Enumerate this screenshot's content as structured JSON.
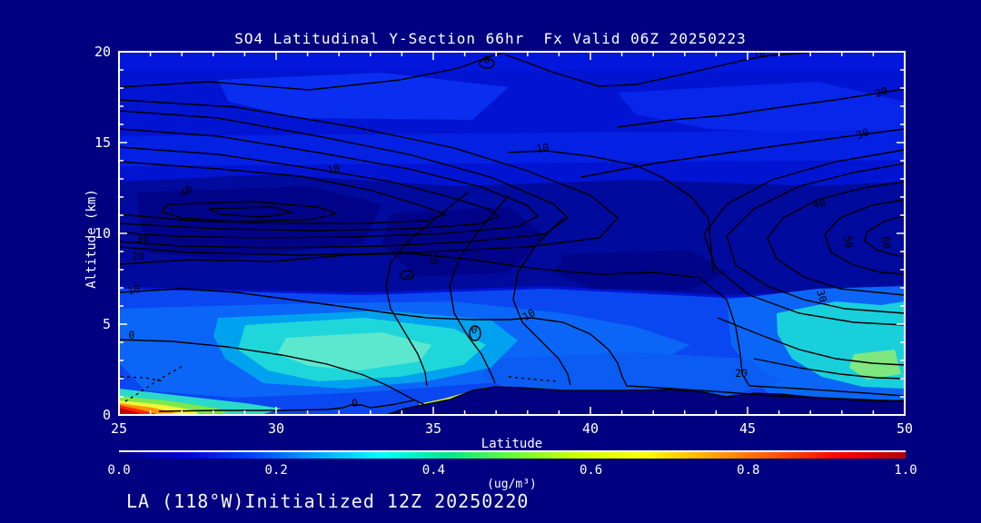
{
  "title": "SO4 Latitudinal Y-Section 66hr  Fx Valid 06Z 20250223",
  "footer": {
    "text": "LA (118°W)Initialized 12Z 20250220"
  },
  "chart_data": {
    "type": "heatmap",
    "subtype": "filled-contour-cross-section",
    "title": "SO4 Latitudinal Y-Section 66hr  Fx Valid 06Z 20250223",
    "xlabel": "Latitude",
    "ylabel": "Altitude (km)",
    "xlim": [
      25,
      50
    ],
    "ylim": [
      0,
      20
    ],
    "x_ticks": [
      25,
      30,
      35,
      40,
      45,
      50
    ],
    "y_ticks": [
      0,
      5,
      10,
      15,
      20
    ],
    "x_minor_step": 1,
    "y_minor_step": 1,
    "grid": false,
    "contour_levels": [
      0,
      10,
      20,
      30,
      40,
      50,
      60
    ],
    "contour_labels": [
      {
        "v": "10",
        "lat": 45.4,
        "alt_km": 19.7,
        "rot": -15
      },
      {
        "v": "0",
        "lat": 36.7,
        "alt_km": 19.35,
        "rot": 0
      },
      {
        "v": "20",
        "lat": 49.3,
        "alt_km": 17.6,
        "rot": -20
      },
      {
        "v": "30",
        "lat": 48.7,
        "alt_km": 15.3,
        "rot": -20
      },
      {
        "v": "10",
        "lat": 31.85,
        "alt_km": 13.35,
        "rot": -12
      },
      {
        "v": "10",
        "lat": 38.5,
        "alt_km": 14.5,
        "rot": -10
      },
      {
        "v": "40",
        "lat": 27.2,
        "alt_km": 12.15,
        "rot": -35
      },
      {
        "v": "30",
        "lat": 25.75,
        "alt_km": 9.5,
        "rot": 0
      },
      {
        "v": "20",
        "lat": 25.6,
        "alt_km": 8.55,
        "rot": 0
      },
      {
        "v": "10",
        "lat": 25.5,
        "alt_km": 6.7,
        "rot": -15
      },
      {
        "v": "0",
        "lat": 25.4,
        "alt_km": 4.2,
        "rot": 0
      },
      {
        "v": "40",
        "lat": 47.3,
        "alt_km": 11.45,
        "rot": -10
      },
      {
        "v": "50",
        "lat": 48.1,
        "alt_km": 9.5,
        "rot": 80
      },
      {
        "v": "60",
        "lat": 49.3,
        "alt_km": 9.45,
        "rot": 80
      },
      {
        "v": "30",
        "lat": 47.25,
        "alt_km": 6.5,
        "rot": 75
      },
      {
        "v": "20",
        "lat": 44.8,
        "alt_km": 2.1,
        "rot": 0
      },
      {
        "v": "0",
        "lat": 34.1,
        "alt_km": 7.5,
        "rot": 70
      },
      {
        "v": "0",
        "lat": 36.3,
        "alt_km": 4.5,
        "rot": 0
      },
      {
        "v": "10",
        "lat": 38.1,
        "alt_km": 5.35,
        "rot": -30
      },
      {
        "v": "0",
        "lat": 32.5,
        "alt_km": 0.45,
        "rot": 0
      },
      {
        "v": "10",
        "lat": 34.9,
        "alt_km": 8.6,
        "rot": 85
      }
    ],
    "colorbar": {
      "label": "(ug/m³)",
      "range": [
        0.0,
        1.0
      ],
      "ticks": [
        "0.0",
        "0.2",
        "0.4",
        "0.6",
        "0.8",
        "1.0"
      ],
      "colors": [
        "#000080",
        "#0000d9",
        "#0040ff",
        "#00a4ff",
        "#00ffff",
        "#00e68c",
        "#66ff33",
        "#ccff00",
        "#ffff00",
        "#ffaa00",
        "#ff5500",
        "#ff0000",
        "#b30000"
      ]
    },
    "fill_features": [
      {
        "desc": "surface maximum at left edge (basin hotspot)",
        "lat": 25.3,
        "alt_km": 0.3,
        "value_ug_m3": 1.0
      },
      {
        "desc": "boundary-layer cyan plume",
        "lat_range": [
          29,
          37
        ],
        "alt_km_range": [
          1,
          5
        ],
        "value_ug_m3": 0.4
      },
      {
        "desc": "right-side cyan/green plume",
        "lat_range": [
          46,
          50
        ],
        "alt_km_range": [
          1,
          6
        ],
        "value_ug_m3": 0.45
      },
      {
        "desc": "dark mid-troposphere minimum band",
        "lat_range": [
          25,
          50
        ],
        "alt_km_range": [
          7,
          13
        ],
        "value_ug_m3": 0.05
      },
      {
        "desc": "upper-level blue layer",
        "lat_range": [
          25,
          50
        ],
        "alt_km_range": [
          13,
          20
        ],
        "value_ug_m3": 0.15
      },
      {
        "desc": "terrain mask (no data) along bottom",
        "lat_range": [
          33.5,
          50
        ],
        "alt_km_range": [
          0,
          1.5
        ],
        "value_ug_m3": null
      }
    ],
    "palette": {
      "background": "#000080",
      "axis": "#ffffff",
      "contour_line": "#000000",
      "base_fill": "#0114d2",
      "dark_band": "#000a9c",
      "cyan_plume": "#1fd7da",
      "hotspot_red": "#ff2400"
    }
  }
}
